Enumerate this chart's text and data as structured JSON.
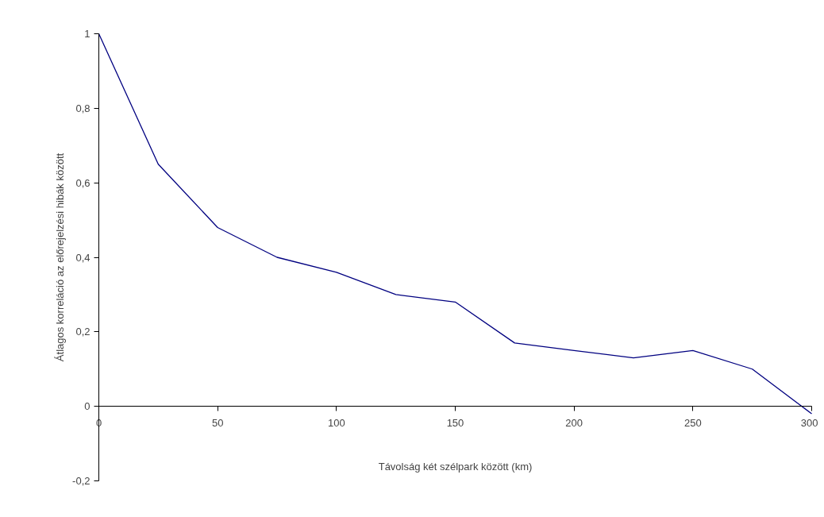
{
  "chart_data": {
    "type": "line",
    "xlabel": "Távolság két szélpark között (km)",
    "ylabel": "Átlagos korreláció az előrejelzési hibák között",
    "x": [
      0,
      25,
      50,
      75,
      100,
      125,
      150,
      175,
      200,
      225,
      250,
      275,
      300
    ],
    "series": [
      {
        "color": "#000080",
        "values": [
          1,
          0.65,
          0.48,
          0.4,
          0.36,
          0.3,
          0.28,
          0.17,
          0.15,
          0.13,
          0.15,
          0.1,
          -0.02
        ]
      }
    ],
    "xlim": [
      0,
      300
    ],
    "xticks": [
      0,
      50,
      100,
      150,
      200,
      250,
      300
    ],
    "ylim": [
      -0.2,
      1
    ],
    "yticks": [
      {
        "value": -0.2,
        "label": "-0,2"
      },
      0,
      {
        "value": 0.2,
        "label": "0,2"
      },
      {
        "value": 0.4,
        "label": "0,4"
      },
      {
        "value": 0.6,
        "label": "0,6"
      },
      {
        "value": 0.8,
        "label": "0,8"
      },
      1
    ],
    "grid": false,
    "marker": "none",
    "line_style": "solid"
  }
}
